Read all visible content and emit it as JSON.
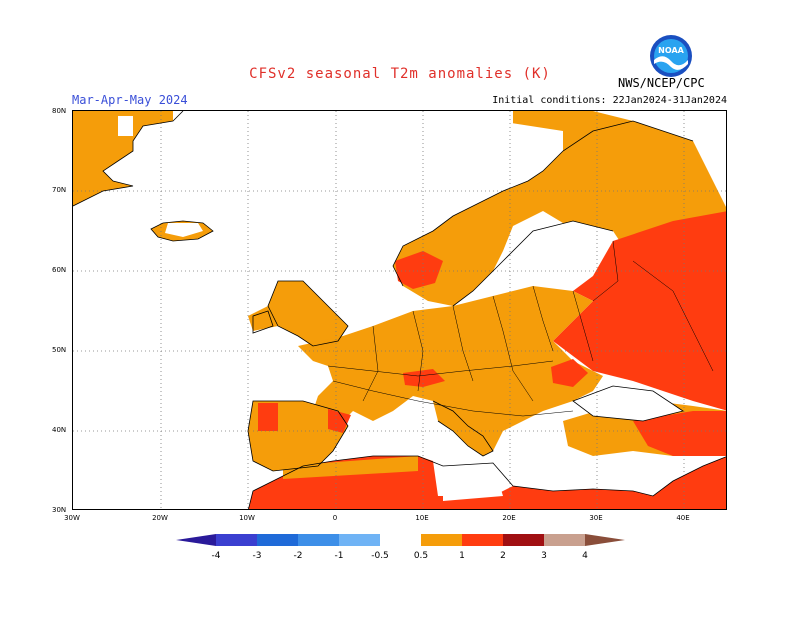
{
  "title": "CFSv2 seasonal T2m anomalies (K)",
  "season": "Mar-Apr-May 2024",
  "initial_conditions": "Initial conditions: 22Jan2024-31Jan2024",
  "agency": "NWS/NCEP/CPC",
  "logo_text": "NOAA",
  "lat_labels": [
    "80N",
    "70N",
    "60N",
    "50N",
    "40N",
    "30N"
  ],
  "lon_labels": [
    "30W",
    "20W",
    "10W",
    "0",
    "10E",
    "20E",
    "30E",
    "40E"
  ],
  "colorbar": {
    "labels": [
      "-4",
      "-3",
      "-2",
      "-1",
      "-0.5",
      "0.5",
      "1",
      "2",
      "3",
      "4"
    ],
    "colors": [
      "#2a1a9a",
      "#3b3fd0",
      "#1f6ad8",
      "#3d8fe8",
      "#6fb3f5",
      "#ffffff",
      "#f59d0a",
      "#ff3c10",
      "#a00f12",
      "#c9a08f",
      "#8a4e3a"
    ]
  },
  "colors": {
    "anomaly_0_5_to_1": "#f59d0a",
    "anomaly_1_to_2": "#ff3c10",
    "no_anomaly": "#ffffff",
    "cold_anomaly_small": "#6fb3f5"
  }
}
